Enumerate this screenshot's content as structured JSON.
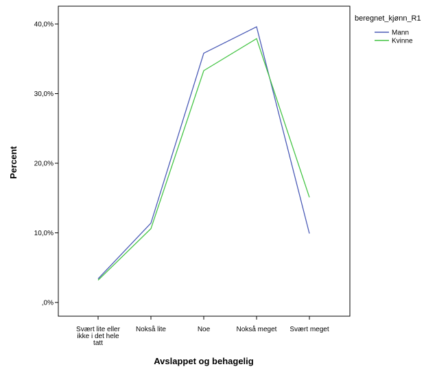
{
  "chart_data": {
    "type": "line",
    "xlabel": "Avslappet og behagelig",
    "ylabel": "Percent",
    "categories": [
      [
        "Svært lite eller",
        "ikke i det hele",
        "tatt"
      ],
      [
        "Nokså lite"
      ],
      [
        "Noe"
      ],
      [
        "Nokså meget"
      ],
      [
        "Svært meget"
      ]
    ],
    "ylim": [
      0,
      40
    ],
    "yticks": [
      0,
      10,
      20,
      30,
      40
    ],
    "ytick_labels": [
      ",0%",
      "10,0%",
      "20,0%",
      "30,0%",
      "40,0%"
    ],
    "legend_title": "beregnet_kjønn_R1",
    "legend_position": "right",
    "grid": false,
    "series": [
      {
        "name": "Mann",
        "color": "#4a5ab6",
        "values": [
          3.4,
          11.4,
          35.8,
          39.6,
          9.9
        ]
      },
      {
        "name": "Kvinne",
        "color": "#44c444",
        "values": [
          3.2,
          10.6,
          33.3,
          37.9,
          15.1
        ]
      }
    ]
  }
}
